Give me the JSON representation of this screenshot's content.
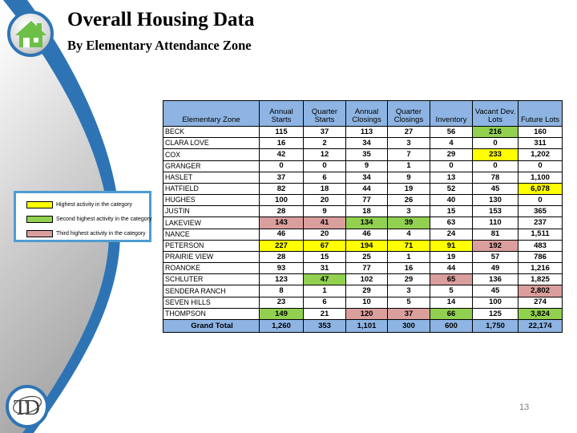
{
  "header": {
    "title": "Overall Housing Data",
    "subtitle": "By Elementary Attendance Zone"
  },
  "page": {
    "number": "13"
  },
  "icons": {
    "top_badge": "house-icon",
    "bottom_badge": "td-logo-icon"
  },
  "colors": {
    "highlight_yellow": "#FFFF00",
    "highlight_green": "#92D050",
    "highlight_pink": "#DA9E9D",
    "header_blue": "#8DB4E2",
    "swoosh_blue": "#2E74B5",
    "legend_border": "#4E9CD1"
  },
  "legend": {
    "items": [
      {
        "label": "Highest activity in the category",
        "color_key": "y"
      },
      {
        "label": "Second highest activity in the category",
        "color_key": "g"
      },
      {
        "label": "Third highest activity in the category",
        "color_key": "p"
      }
    ]
  },
  "table": {
    "zone_header": "Elementary Zone",
    "columns": [
      "Annual\nStarts",
      "Quarter\nStarts",
      "Annual\nClosings",
      "Quarter\nClosings",
      "Inventory",
      "Vacant Dev.\nLots",
      "Future Lots"
    ],
    "rows": [
      {
        "zone": "BECK",
        "values": [
          "115",
          "37",
          "113",
          "27",
          "56",
          "216",
          "160"
        ],
        "highlights": {
          "5": "g"
        }
      },
      {
        "zone": "CLARA LOVE",
        "values": [
          "16",
          "2",
          "34",
          "3",
          "4",
          "0",
          "311"
        ],
        "highlights": {}
      },
      {
        "zone": "COX",
        "values": [
          "42",
          "12",
          "35",
          "7",
          "29",
          "233",
          "1,202"
        ],
        "highlights": {
          "5": "y"
        }
      },
      {
        "zone": "GRANGER",
        "values": [
          "0",
          "0",
          "9",
          "1",
          "0",
          "0",
          "0"
        ],
        "highlights": {}
      },
      {
        "zone": "HASLET",
        "values": [
          "37",
          "6",
          "34",
          "9",
          "13",
          "78",
          "1,100"
        ],
        "highlights": {}
      },
      {
        "zone": "HATFIELD",
        "values": [
          "82",
          "18",
          "44",
          "19",
          "52",
          "45",
          "6,078"
        ],
        "highlights": {
          "6": "y"
        }
      },
      {
        "zone": "HUGHES",
        "values": [
          "100",
          "20",
          "77",
          "26",
          "40",
          "130",
          "0"
        ],
        "highlights": {}
      },
      {
        "zone": "JUSTIN",
        "values": [
          "28",
          "9",
          "18",
          "3",
          "15",
          "153",
          "365"
        ],
        "highlights": {}
      },
      {
        "zone": "LAKEVIEW",
        "values": [
          "143",
          "41",
          "134",
          "39",
          "63",
          "110",
          "237"
        ],
        "highlights": {
          "0": "p",
          "1": "p",
          "2": "g",
          "3": "g"
        }
      },
      {
        "zone": "NANCE",
        "values": [
          "46",
          "20",
          "46",
          "4",
          "24",
          "81",
          "1,511"
        ],
        "highlights": {}
      },
      {
        "zone": "PETERSON",
        "values": [
          "227",
          "67",
          "194",
          "71",
          "91",
          "192",
          "483"
        ],
        "highlights": {
          "0": "y",
          "1": "y",
          "2": "y",
          "3": "y",
          "4": "y",
          "5": "p"
        }
      },
      {
        "zone": "PRAIRIE VIEW",
        "values": [
          "28",
          "15",
          "25",
          "1",
          "19",
          "57",
          "786"
        ],
        "highlights": {}
      },
      {
        "zone": "ROANOKE",
        "values": [
          "93",
          "31",
          "77",
          "16",
          "44",
          "49",
          "1,216"
        ],
        "highlights": {}
      },
      {
        "zone": "SCHLUTER",
        "values": [
          "123",
          "47",
          "102",
          "29",
          "65",
          "136",
          "1,825"
        ],
        "highlights": {
          "1": "g",
          "4": "p"
        }
      },
      {
        "zone": "SENDERA RANCH",
        "values": [
          "8",
          "1",
          "29",
          "3",
          "5",
          "45",
          "2,802"
        ],
        "highlights": {
          "6": "p"
        }
      },
      {
        "zone": "SEVEN HILLS",
        "values": [
          "23",
          "6",
          "10",
          "5",
          "14",
          "100",
          "274"
        ],
        "highlights": {}
      },
      {
        "zone": "THOMPSON",
        "values": [
          "149",
          "21",
          "120",
          "37",
          "66",
          "125",
          "3,824"
        ],
        "highlights": {
          "0": "g",
          "2": "p",
          "3": "p",
          "4": "g",
          "6": "g"
        }
      }
    ],
    "grand_total": {
      "label": "Grand Total",
      "values": [
        "1,260",
        "353",
        "1,101",
        "300",
        "600",
        "1,750",
        "22,174"
      ]
    }
  }
}
